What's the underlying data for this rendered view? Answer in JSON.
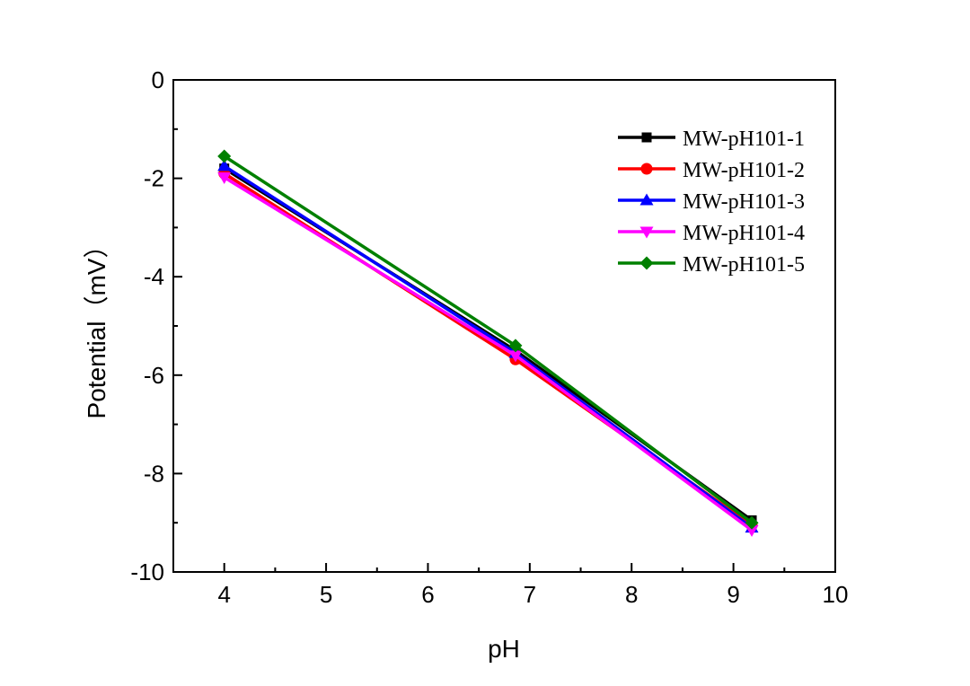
{
  "chart_data": {
    "type": "line",
    "title": "",
    "xlabel": "pH",
    "ylabel": "Potential（mV）",
    "xlim": [
      3.5,
      10
    ],
    "ylim": [
      -10,
      0
    ],
    "x_ticks": [
      4,
      5,
      6,
      7,
      8,
      9,
      10
    ],
    "y_ticks": [
      0,
      -2,
      -4,
      -6,
      -8,
      -10
    ],
    "grid": false,
    "legend_position": "top-right",
    "x": [
      4.0,
      6.86,
      9.18
    ],
    "series": [
      {
        "name": "MW-pH101-1",
        "color": "#000000",
        "marker": "square",
        "values": [
          -1.8,
          -5.5,
          -8.95
        ]
      },
      {
        "name": "MW-pH101-2",
        "color": "#ff0000",
        "marker": "circle",
        "values": [
          -1.9,
          -5.68,
          -9.05
        ]
      },
      {
        "name": "MW-pH101-3",
        "color": "#0000ff",
        "marker": "triangle-up",
        "values": [
          -1.75,
          -5.55,
          -9.1
        ]
      },
      {
        "name": "MW-pH101-4",
        "color": "#ff00ff",
        "marker": "triangle-down",
        "values": [
          -1.98,
          -5.6,
          -9.15
        ]
      },
      {
        "name": "MW-pH101-5",
        "color": "#008000",
        "marker": "diamond",
        "values": [
          -1.55,
          -5.4,
          -9.0
        ]
      }
    ]
  }
}
